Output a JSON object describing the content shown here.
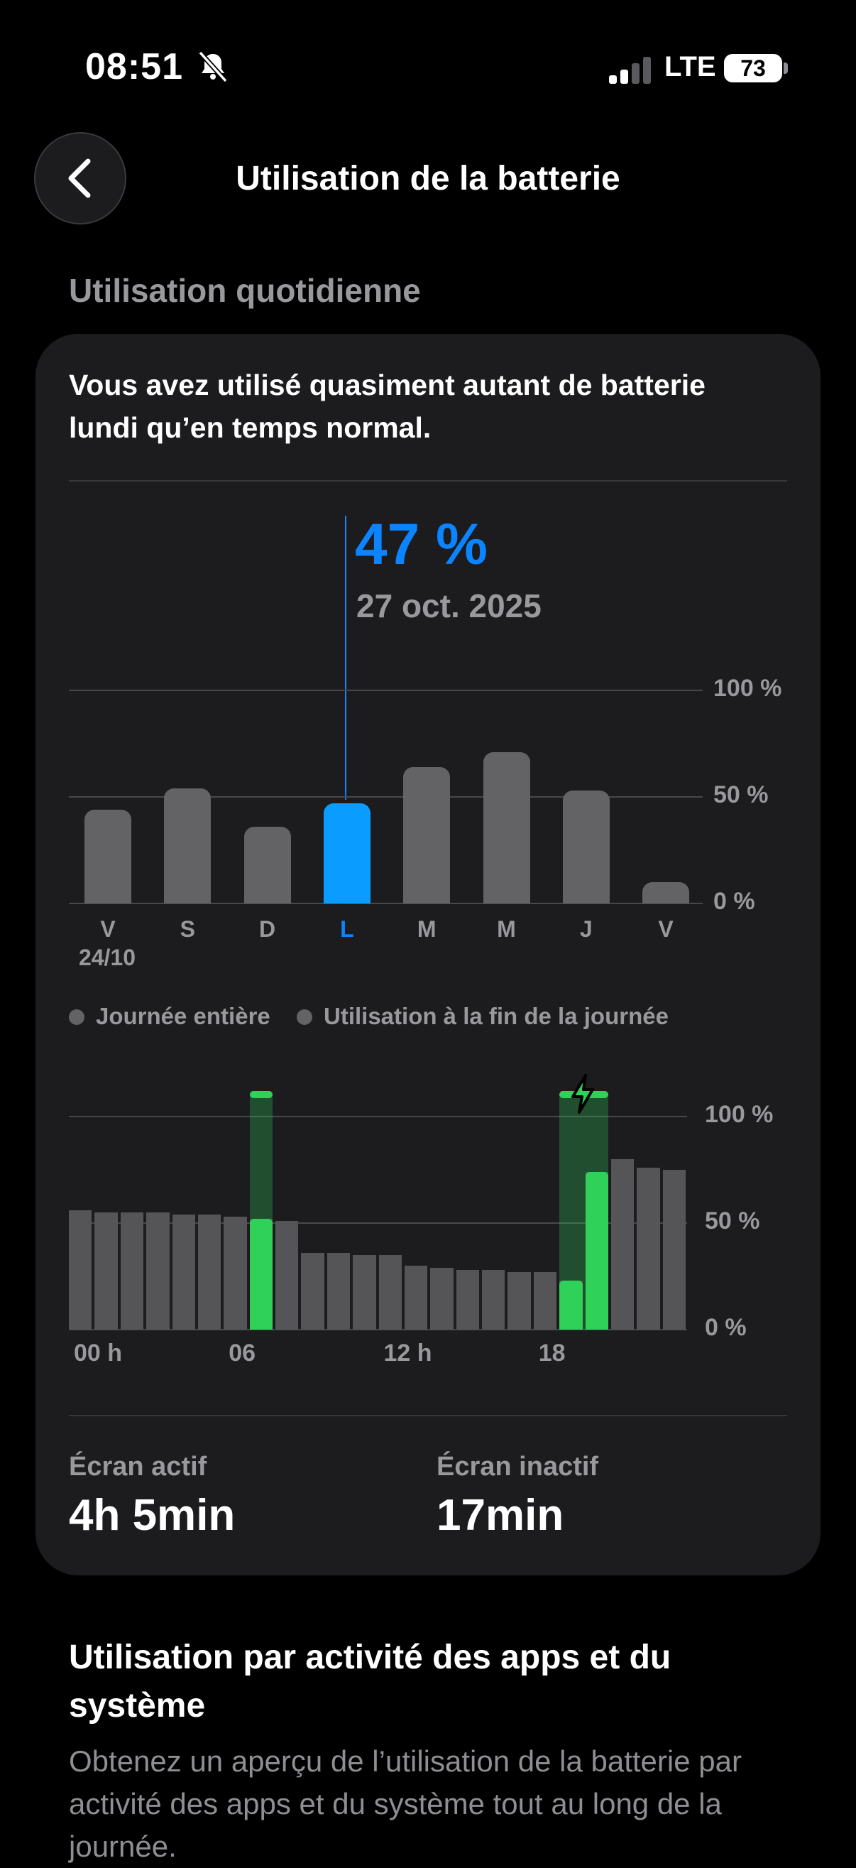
{
  "status_bar": {
    "time": "08:51",
    "network": "LTE",
    "battery": "73"
  },
  "header": {
    "title": "Utilisation de la batterie"
  },
  "section": {
    "title": "Utilisation quotidienne"
  },
  "card": {
    "summary": "Vous avez utilisé quasiment autant de batterie lundi qu’en temps normal.",
    "selected": {
      "percent": "47 %",
      "date": "27 oct. 2025"
    },
    "legend": {
      "item1": "Journée entière",
      "item2": "Utilisation à la fin de la journée"
    },
    "stats": {
      "screen_on_label": "Écran actif",
      "screen_on_value": "4h 5min",
      "screen_off_label": "Écran inactif",
      "screen_off_value": "17min"
    }
  },
  "activity": {
    "title": "Utilisation par activité des apps et du système",
    "description": "Obtenez un aperçu de l’utilisation de la batterie par activité des apps et du système tout au long de la journée."
  },
  "chart_data": [
    {
      "type": "bar",
      "categories": [
        "V",
        "S",
        "D",
        "L",
        "M",
        "M",
        "J",
        "V"
      ],
      "first_date_label": "24/10",
      "values": [
        44,
        54,
        36,
        47,
        64,
        71,
        53,
        10
      ],
      "selected_index": 3,
      "ylim": [
        0,
        100
      ],
      "ytick_labels": [
        "0 %",
        "50 %",
        "100 %"
      ],
      "colors": {
        "bar": "#636366",
        "selected": "#0a9cff"
      }
    },
    {
      "type": "bar",
      "x_tick_labels": [
        "00 h",
        "06",
        "12 h",
        "18"
      ],
      "values": [
        56,
        55,
        55,
        55,
        54,
        54,
        53,
        52,
        51,
        36,
        36,
        35,
        35,
        30,
        29,
        28,
        28,
        27,
        27,
        23,
        74,
        80,
        76,
        75
      ],
      "green_values": [
        null,
        null,
        null,
        null,
        null,
        null,
        null,
        52,
        null,
        null,
        null,
        null,
        null,
        null,
        null,
        null,
        null,
        null,
        null,
        23,
        74,
        null,
        null,
        null
      ],
      "charging_hours": [
        7,
        19,
        20
      ],
      "ylim": [
        0,
        100
      ],
      "ytick_labels": [
        "0 %",
        "50 %",
        "100 %"
      ],
      "colors": {
        "bar": "#555558",
        "charging": "#30d158"
      }
    }
  ]
}
